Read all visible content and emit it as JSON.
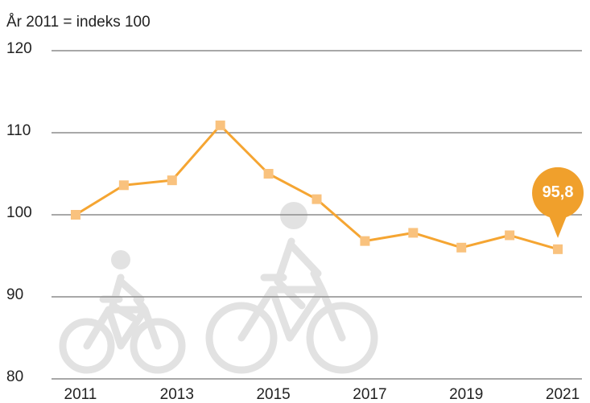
{
  "chart_data": {
    "type": "line",
    "y_axis_label": "År 2011 = indeks 100",
    "x": [
      2011,
      2012,
      2013,
      2014,
      2015,
      2016,
      2017,
      2018,
      2019,
      2020,
      2021
    ],
    "series": [
      {
        "name": "Indeks",
        "color": "#f5a532",
        "marker_color": "#f9c27e",
        "values": [
          100,
          103.6,
          104.2,
          110.9,
          105.0,
          101.9,
          96.8,
          97.8,
          96.0,
          97.5,
          95.8
        ]
      }
    ],
    "annotation": "95,8",
    "annotation_color": "#f0a02c",
    "xlim": [
      2010.5,
      2021.5
    ],
    "xticks": [
      2011,
      2013,
      2015,
      2017,
      2019,
      2021
    ],
    "ylim": [
      80,
      120
    ],
    "yticks": [
      80,
      90,
      100,
      110,
      120
    ],
    "grid": true
  }
}
